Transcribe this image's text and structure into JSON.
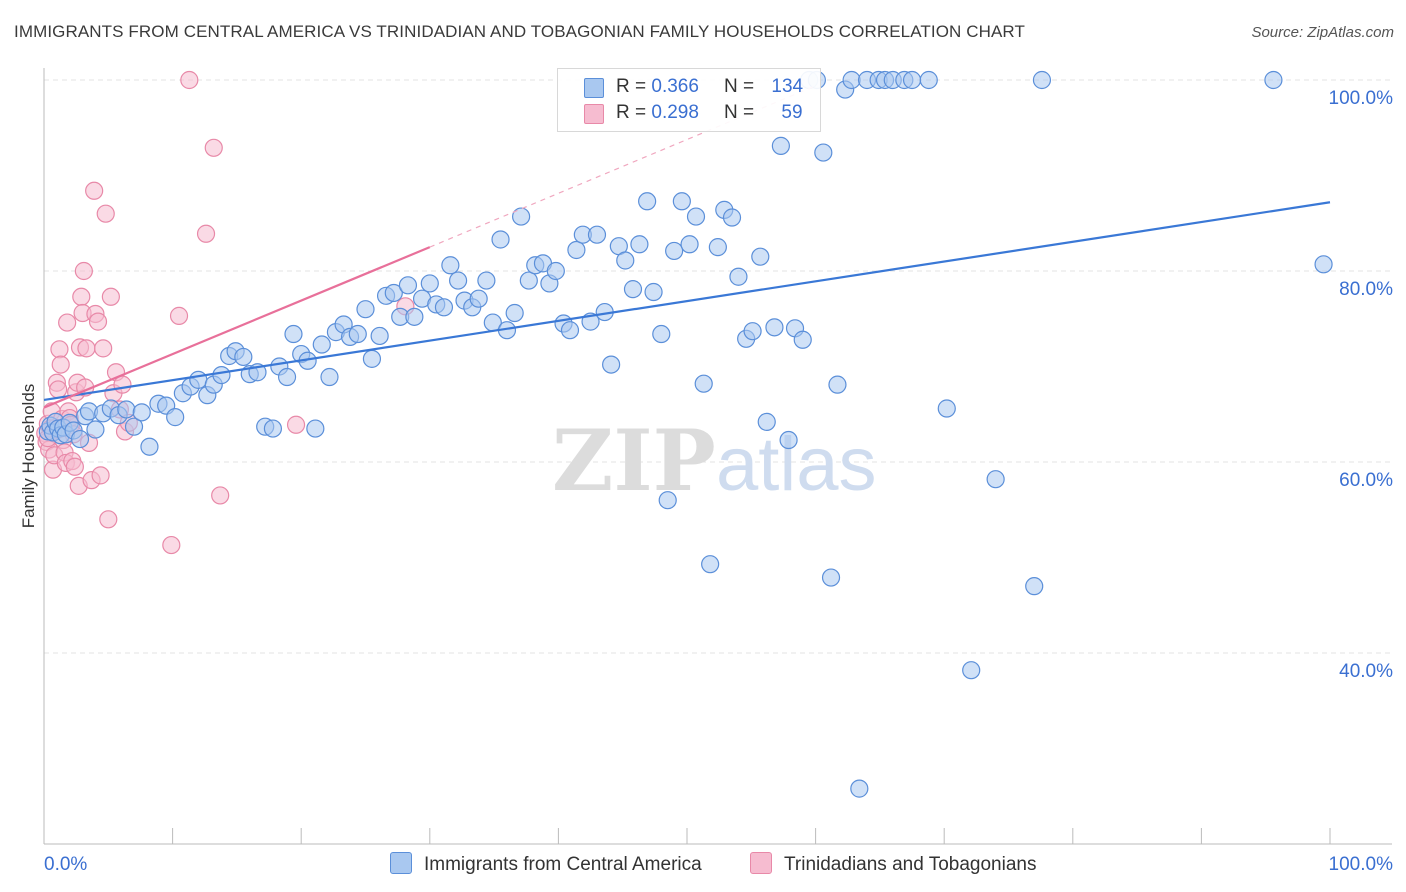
{
  "title": "IMMIGRANTS FROM CENTRAL AMERICA VS TRINIDADIAN AND TOBAGONIAN FAMILY HOUSEHOLDS CORRELATION CHART",
  "source": "Source: ZipAtlas.com",
  "watermark": {
    "zip": "ZIP",
    "atlas": "atlas"
  },
  "legend": {
    "series1": {
      "r_label": "R =",
      "r_value": "0.366",
      "n_label": "N =",
      "n_value": "134"
    },
    "series2": {
      "r_label": "R =",
      "r_value": "0.298",
      "n_label": "N =",
      "n_value": "59"
    }
  },
  "colors": {
    "blue_fill": "#a9c8f0",
    "blue_stroke": "#5b8fd9",
    "blue_line": "#3a78d6",
    "pink_fill": "#f6bcd0",
    "pink_stroke": "#e889a8",
    "pink_line": "#e8709a",
    "axis_label": "#3a6fd1",
    "grid": "#e3e3e3"
  },
  "chart_data": {
    "type": "scatter",
    "title": "IMMIGRANTS FROM CENTRAL AMERICA VS TRINIDADIAN AND TOBAGONIAN FAMILY HOUSEHOLDS CORRELATION CHART",
    "xlabel": "",
    "ylabel": "Family Households",
    "x_tick_labels": [
      "0.0%",
      "100.0%"
    ],
    "y_tick_labels": [
      "100.0%",
      "80.0%",
      "60.0%",
      "40.0%"
    ],
    "y_ticks": [
      100,
      80,
      60,
      40
    ],
    "xlim": [
      0,
      100
    ],
    "ylim": [
      21,
      102
    ],
    "grid": true,
    "legend_position": "top-center",
    "series": [
      {
        "name": "Immigrants from Central America",
        "R": 0.366,
        "N": 134,
        "trend": {
          "x0": 0,
          "y0": 66.5,
          "x1": 100,
          "y1": 87.2
        },
        "points": [
          [
            0.3,
            63.2
          ],
          [
            0.5,
            63.8
          ],
          [
            0.7,
            63.1
          ],
          [
            0.9,
            64.2
          ],
          [
            1.1,
            63.5
          ],
          [
            1.3,
            62.8
          ],
          [
            1.5,
            63.6
          ],
          [
            1.7,
            62.9
          ],
          [
            2.0,
            64.1
          ],
          [
            2.3,
            63.3
          ],
          [
            2.8,
            62.4
          ],
          [
            3.2,
            64.8
          ],
          [
            3.5,
            65.3
          ],
          [
            4.0,
            63.4
          ],
          [
            4.6,
            65.1
          ],
          [
            5.2,
            65.6
          ],
          [
            5.8,
            64.9
          ],
          [
            6.4,
            65.5
          ],
          [
            7.0,
            63.7
          ],
          [
            7.6,
            65.2
          ],
          [
            8.2,
            61.6
          ],
          [
            8.9,
            66.1
          ],
          [
            9.5,
            65.9
          ],
          [
            10.2,
            64.7
          ],
          [
            10.8,
            67.2
          ],
          [
            11.4,
            67.9
          ],
          [
            12.0,
            68.6
          ],
          [
            12.7,
            67.0
          ],
          [
            13.2,
            68.1
          ],
          [
            13.8,
            69.1
          ],
          [
            14.4,
            71.1
          ],
          [
            14.9,
            71.6
          ],
          [
            15.5,
            71.0
          ],
          [
            16.0,
            69.2
          ],
          [
            16.6,
            69.4
          ],
          [
            17.2,
            63.7
          ],
          [
            17.8,
            63.5
          ],
          [
            18.3,
            70.0
          ],
          [
            18.9,
            68.9
          ],
          [
            19.4,
            73.4
          ],
          [
            20.0,
            71.3
          ],
          [
            20.5,
            70.6
          ],
          [
            21.1,
            63.5
          ],
          [
            21.6,
            72.3
          ],
          [
            22.2,
            68.9
          ],
          [
            22.7,
            73.6
          ],
          [
            23.3,
            74.4
          ],
          [
            23.8,
            73.1
          ],
          [
            24.4,
            73.4
          ],
          [
            25.0,
            76.0
          ],
          [
            25.5,
            70.8
          ],
          [
            26.1,
            73.2
          ],
          [
            26.6,
            77.4
          ],
          [
            27.2,
            77.7
          ],
          [
            27.7,
            75.2
          ],
          [
            28.3,
            78.5
          ],
          [
            28.8,
            75.2
          ],
          [
            29.4,
            77.1
          ],
          [
            30.0,
            78.7
          ],
          [
            30.5,
            76.5
          ],
          [
            31.1,
            76.2
          ],
          [
            31.6,
            80.6
          ],
          [
            32.2,
            79.0
          ],
          [
            32.7,
            76.9
          ],
          [
            33.3,
            76.2
          ],
          [
            33.8,
            77.1
          ],
          [
            34.4,
            79.0
          ],
          [
            34.9,
            74.6
          ],
          [
            35.5,
            83.3
          ],
          [
            36.0,
            73.8
          ],
          [
            36.6,
            75.6
          ],
          [
            37.1,
            85.7
          ],
          [
            37.7,
            79.0
          ],
          [
            38.2,
            80.6
          ],
          [
            38.8,
            80.8
          ],
          [
            39.3,
            78.7
          ],
          [
            39.8,
            80.0
          ],
          [
            40.4,
            74.5
          ],
          [
            40.9,
            73.8
          ],
          [
            41.4,
            82.2
          ],
          [
            41.9,
            83.8
          ],
          [
            42.5,
            74.7
          ],
          [
            43.0,
            83.8
          ],
          [
            43.6,
            75.7
          ],
          [
            44.1,
            70.2
          ],
          [
            44.7,
            82.6
          ],
          [
            45.2,
            81.1
          ],
          [
            45.8,
            78.1
          ],
          [
            46.3,
            82.8
          ],
          [
            46.9,
            87.3
          ],
          [
            47.4,
            77.8
          ],
          [
            48.0,
            73.4
          ],
          [
            48.5,
            56.0
          ],
          [
            49.0,
            82.1
          ],
          [
            49.6,
            87.3
          ],
          [
            50.2,
            82.8
          ],
          [
            50.7,
            85.7
          ],
          [
            51.3,
            68.2
          ],
          [
            51.8,
            49.3
          ],
          [
            52.4,
            82.5
          ],
          [
            52.9,
            86.4
          ],
          [
            53.5,
            85.6
          ],
          [
            54.0,
            79.4
          ],
          [
            54.6,
            72.9
          ],
          [
            55.1,
            73.7
          ],
          [
            55.7,
            81.5
          ],
          [
            56.2,
            64.2
          ],
          [
            56.8,
            74.1
          ],
          [
            57.3,
            93.1
          ],
          [
            57.9,
            62.3
          ],
          [
            58.4,
            74.0
          ],
          [
            59.0,
            72.8
          ],
          [
            59.5,
            100.0
          ],
          [
            60.1,
            100.0
          ],
          [
            60.6,
            92.4
          ],
          [
            61.2,
            47.9
          ],
          [
            61.7,
            68.1
          ],
          [
            62.3,
            99.0
          ],
          [
            62.8,
            100.0
          ],
          [
            63.4,
            25.8
          ],
          [
            64.0,
            100.0
          ],
          [
            64.9,
            100.0
          ],
          [
            65.4,
            100.0
          ],
          [
            66.0,
            100.0
          ],
          [
            66.9,
            100.0
          ],
          [
            67.5,
            100.0
          ],
          [
            68.8,
            100.0
          ],
          [
            70.2,
            65.6
          ],
          [
            72.1,
            38.2
          ],
          [
            74.0,
            58.2
          ],
          [
            77.0,
            47.0
          ],
          [
            77.6,
            100.0
          ],
          [
            95.6,
            100.0
          ],
          [
            99.5,
            80.7
          ]
        ]
      },
      {
        "name": "Trinidadians and Tobagonians",
        "R": 0.298,
        "N": 59,
        "trend": {
          "x0": 0,
          "y0": 65.7,
          "x1": 30,
          "y1": 82.5
        },
        "trend_dashed_extension": {
          "x1": 60,
          "y1": 99.4
        },
        "points": [
          [
            0.1,
            63.0
          ],
          [
            0.2,
            62.1
          ],
          [
            0.3,
            64.0
          ],
          [
            0.4,
            61.3
          ],
          [
            0.5,
            63.5
          ],
          [
            0.6,
            65.3
          ],
          [
            0.7,
            59.2
          ],
          [
            0.8,
            60.7
          ],
          [
            0.9,
            63.6
          ],
          [
            1.0,
            68.3
          ],
          [
            1.1,
            67.6
          ],
          [
            1.2,
            71.8
          ],
          [
            1.3,
            70.2
          ],
          [
            1.4,
            64.5
          ],
          [
            1.5,
            62.3
          ],
          [
            1.6,
            61.0
          ],
          [
            1.7,
            59.9
          ],
          [
            1.8,
            74.6
          ],
          [
            1.9,
            65.3
          ],
          [
            2.0,
            64.6
          ],
          [
            2.1,
            63.9
          ],
          [
            2.2,
            60.1
          ],
          [
            2.3,
            62.9
          ],
          [
            2.4,
            59.5
          ],
          [
            2.5,
            67.3
          ],
          [
            2.6,
            68.3
          ],
          [
            2.7,
            57.5
          ],
          [
            2.8,
            72.0
          ],
          [
            2.9,
            77.3
          ],
          [
            3.0,
            75.6
          ],
          [
            3.1,
            80.0
          ],
          [
            3.2,
            67.8
          ],
          [
            3.3,
            71.9
          ],
          [
            3.5,
            62.0
          ],
          [
            3.7,
            58.1
          ],
          [
            3.9,
            88.4
          ],
          [
            4.0,
            75.5
          ],
          [
            4.2,
            74.7
          ],
          [
            4.4,
            58.6
          ],
          [
            4.6,
            71.9
          ],
          [
            4.8,
            86.0
          ],
          [
            5.0,
            54.0
          ],
          [
            5.2,
            77.3
          ],
          [
            5.4,
            67.2
          ],
          [
            5.6,
            69.4
          ],
          [
            5.9,
            65.5
          ],
          [
            6.1,
            68.1
          ],
          [
            6.3,
            63.2
          ],
          [
            6.6,
            64.1
          ],
          [
            9.9,
            51.3
          ],
          [
            10.5,
            75.3
          ],
          [
            11.3,
            100.0
          ],
          [
            12.6,
            83.9
          ],
          [
            13.2,
            92.9
          ],
          [
            13.7,
            56.5
          ],
          [
            19.6,
            63.9
          ],
          [
            28.1,
            76.3
          ],
          [
            0.3,
            62.5
          ],
          [
            1.1,
            63.4
          ]
        ]
      }
    ]
  }
}
